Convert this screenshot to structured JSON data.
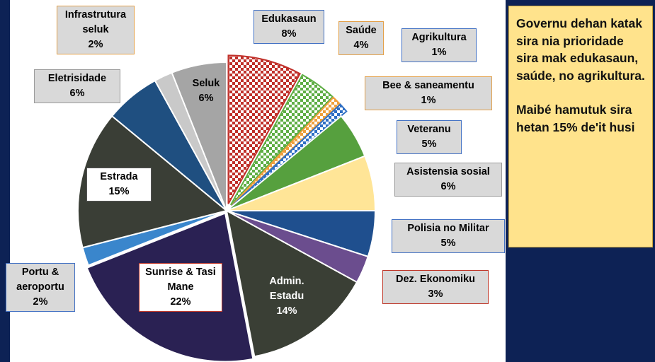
{
  "chart_data": {
    "type": "pie",
    "categories": [
      "Edukasaun",
      "Saúde",
      "Agrikultura",
      "Bee & saneamentu",
      "Veteranu",
      "Asistensia sosial",
      "Polisia no Militar",
      "Dez. Ekonomiku",
      "Admin. Estadu",
      "Sunrise & Tasi Mane",
      "Portu & aeroportu",
      "Estrada",
      "Eletrisidade",
      "Infrastrutura seluk",
      "Seluk"
    ],
    "values": [
      8,
      4,
      1,
      1,
      5,
      6,
      5,
      3,
      14,
      22,
      2,
      15,
      6,
      2,
      6
    ],
    "value_labels": [
      "8%",
      "4%",
      "1%",
      "1%",
      "5%",
      "6%",
      "5%",
      "3%",
      "14%",
      "22%",
      "2%",
      "15%",
      "6%",
      "2%",
      "6%"
    ],
    "colors": [
      "#c0302a",
      "#5fae45",
      "#f0a03c",
      "#2f6fc4",
      "#56a03e",
      "#ffe597",
      "#1f4f8e",
      "#6b4d8e",
      "#3a3f35",
      "#2a2153",
      "#3a86cc",
      "#3a3e36",
      "#1f4f80",
      "#c9c9c9",
      "#a5a5a5"
    ],
    "checkered": [
      true,
      true,
      true,
      true,
      false,
      false,
      false,
      false,
      false,
      false,
      false,
      false,
      false,
      false,
      false
    ],
    "annotation": [
      "Governu dehan katak sira nia prioridade sira mak edukasaun, saúde, no agrikultura.",
      "Maibé hamutuk sira hetan 15% de'it husi"
    ]
  }
}
